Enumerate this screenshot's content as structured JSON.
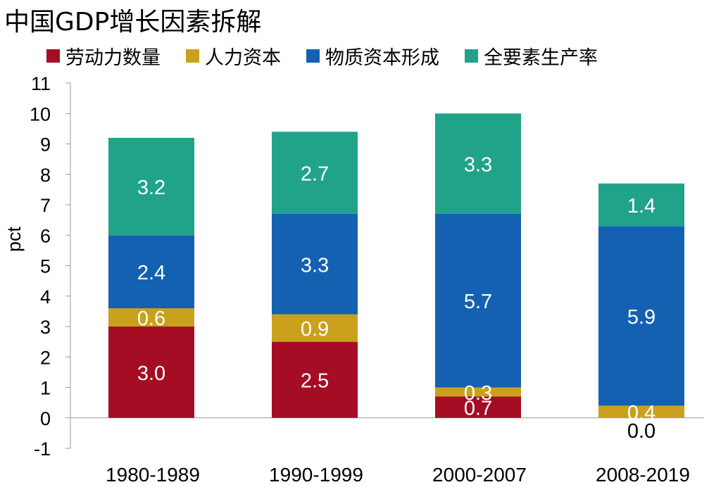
{
  "title": "中国GDP增长因素拆解",
  "chart_data": {
    "type": "bar",
    "stacked": true,
    "title": "中国GDP增长因素拆解",
    "ylabel": "pct",
    "xlabel": "",
    "ylim": [
      -1,
      11
    ],
    "yticks": [
      11,
      10,
      9,
      8,
      7,
      6,
      5,
      4,
      3,
      2,
      1,
      0,
      -1
    ],
    "categories": [
      "1980-1989",
      "1990-1999",
      "2000-2007",
      "2008-2019"
    ],
    "legend_position": "top",
    "series": [
      {
        "name": "劳动力数量",
        "color": "#A50D24",
        "label_color": "#ffffff",
        "values": [
          3.0,
          2.5,
          0.7,
          0.0
        ],
        "labels": [
          "3.0",
          "2.5",
          "0.7",
          "0.0"
        ]
      },
      {
        "name": "人力资本",
        "color": "#C9A11D",
        "label_color": "#ffffff",
        "values": [
          0.6,
          0.9,
          0.3,
          0.4
        ],
        "labels": [
          "0.6",
          "0.9",
          "0.3",
          "0.4"
        ]
      },
      {
        "name": "物质资本形成",
        "color": "#1561B1",
        "label_color": "#ffffff",
        "values": [
          2.4,
          3.3,
          5.7,
          5.9
        ],
        "labels": [
          "2.4",
          "3.3",
          "5.7",
          "5.9"
        ]
      },
      {
        "name": "全要素生产率",
        "color": "#21A38A",
        "label_color": "#ffffff",
        "values": [
          3.2,
          2.7,
          3.3,
          1.4
        ],
        "labels": [
          "3.2",
          "2.7",
          "3.3",
          "1.4"
        ]
      }
    ]
  }
}
